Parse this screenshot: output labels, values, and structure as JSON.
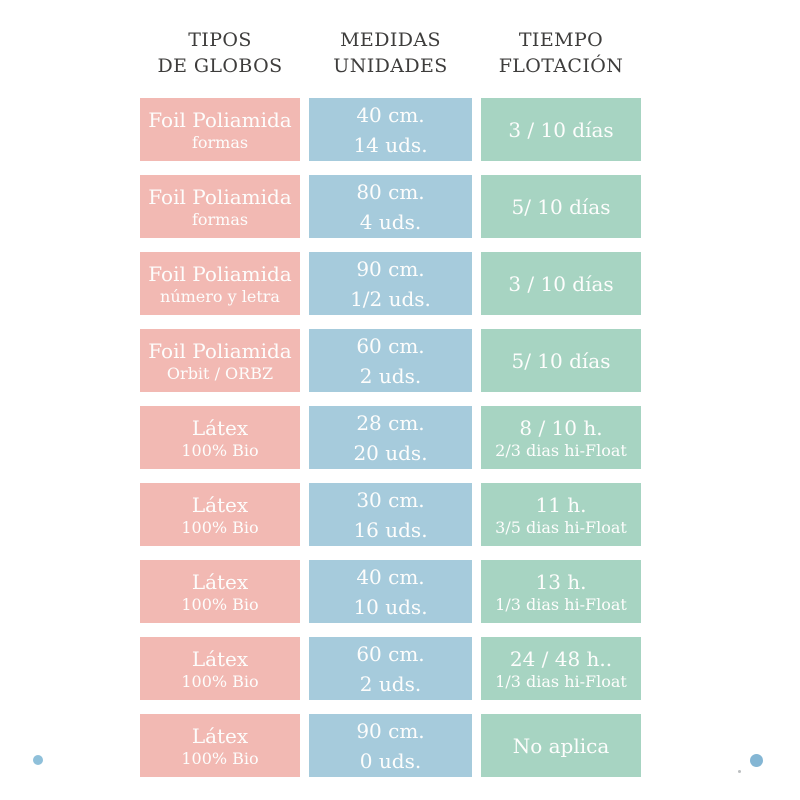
{
  "table": {
    "headers": [
      {
        "line1": "TIPOS",
        "line2": "DE GLOBOS"
      },
      {
        "line1": "MEDIDAS",
        "line2": "UNIDADES"
      },
      {
        "line1": "TIEMPO",
        "line2": "FLOTACIÓN"
      }
    ],
    "rows": [
      {
        "tipo": {
          "main": "Foil Poliamida",
          "sub": "formas"
        },
        "medida": {
          "line1": "40 cm.",
          "line2": "14 uds."
        },
        "tiempo": {
          "main": "3 / 10 días",
          "sub": ""
        }
      },
      {
        "tipo": {
          "main": "Foil Poliamida",
          "sub": "formas"
        },
        "medida": {
          "line1": "80 cm.",
          "line2": "4 uds."
        },
        "tiempo": {
          "main": "5/ 10 días",
          "sub": ""
        }
      },
      {
        "tipo": {
          "main": "Foil Poliamida",
          "sub": "número y letra"
        },
        "medida": {
          "line1": "90 cm.",
          "line2": "1/2 uds."
        },
        "tiempo": {
          "main": "3 / 10 días",
          "sub": ""
        }
      },
      {
        "tipo": {
          "main": "Foil Poliamida",
          "sub": "Orbit / ORBZ"
        },
        "medida": {
          "line1": "60 cm.",
          "line2": "2 uds."
        },
        "tiempo": {
          "main": "5/ 10 días",
          "sub": ""
        }
      },
      {
        "tipo": {
          "main": "Látex",
          "sub": "100% Bio"
        },
        "medida": {
          "line1": "28 cm.",
          "line2": "20 uds."
        },
        "tiempo": {
          "main": "8 / 10 h.",
          "sub": "2/3 dias hi-Float"
        }
      },
      {
        "tipo": {
          "main": "Látex",
          "sub": "100% Bio"
        },
        "medida": {
          "line1": "30 cm.",
          "line2": "16 uds."
        },
        "tiempo": {
          "main": "11 h.",
          "sub": "3/5 dias hi-Float"
        }
      },
      {
        "tipo": {
          "main": "Látex",
          "sub": "100% Bio"
        },
        "medida": {
          "line1": "40 cm.",
          "line2": "10 uds."
        },
        "tiempo": {
          "main": "13 h.",
          "sub": "1/3 dias hi-Float"
        }
      },
      {
        "tipo": {
          "main": "Látex",
          "sub": "100% Bio"
        },
        "medida": {
          "line1": "60 cm.",
          "line2": "2 uds."
        },
        "tiempo": {
          "main": "24 / 48 h..",
          "sub": "1/3 dias hi-Float"
        }
      },
      {
        "tipo": {
          "main": "Látex",
          "sub": "100% Bio"
        },
        "medida": {
          "line1": "90 cm.",
          "line2": "0 uds."
        },
        "tiempo": {
          "main": "No aplica",
          "sub": ""
        }
      }
    ]
  },
  "colors": {
    "tipo_box": "#f2b9b3",
    "medida_box": "#a6cbdc",
    "tiempo_box": "#a7d4c2",
    "box_text": "#fdfdfc",
    "header_text": "#3e3d3c",
    "dot_left": "#8fc0da",
    "dot_right": "#84b6d4",
    "dot_speck": "#bcbfc1"
  }
}
